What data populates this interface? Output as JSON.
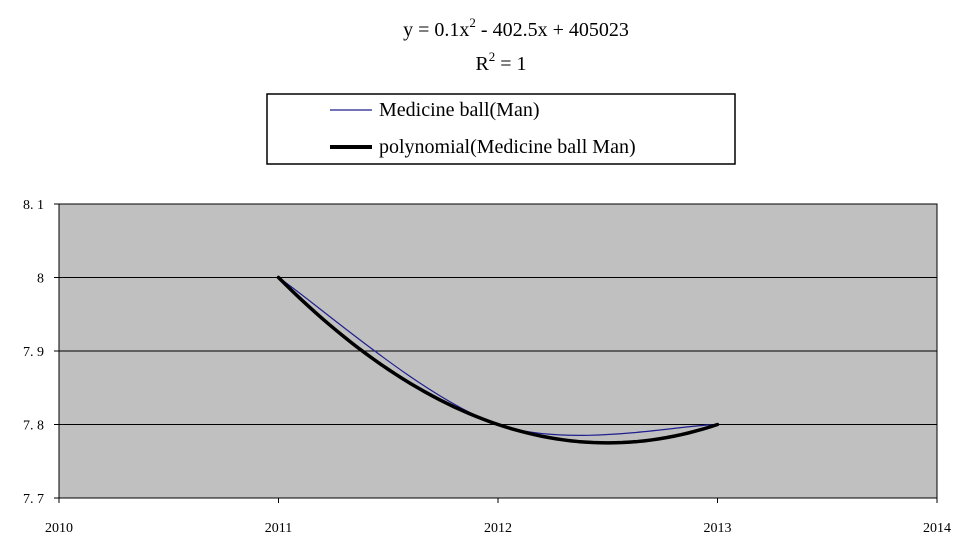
{
  "chart_data": {
    "type": "line",
    "equation": {
      "line1_pre": "y = 0.1x",
      "line1_sup": "2",
      "line1_post": " - 402.5x + 405023",
      "line2_pre": "R",
      "line2_sup": "2",
      "line2_post": " = 1"
    },
    "legend": {
      "placement": "top-center",
      "entries": [
        "Medicine ball(Man)",
        "polynomial(Medicine ball Man)"
      ]
    },
    "xlim": [
      2010,
      2014
    ],
    "ylim": [
      7.7,
      8.1
    ],
    "x_ticks": [
      "2010",
      "2011",
      "2012",
      "2013",
      "2014"
    ],
    "y_ticks": [
      "8. 1",
      "8",
      "7. 9",
      "7. 8",
      "7. 7"
    ],
    "y_tick_values": [
      8.1,
      8.0,
      7.9,
      7.8,
      7.7
    ],
    "grid": true,
    "plot_background": "#c0c0c0",
    "series": [
      {
        "name": "Medicine ball(Man)",
        "color": "#1f1f8f",
        "style": "thin",
        "x": [
          2011,
          2012,
          2013
        ],
        "y": [
          8.0,
          7.8,
          7.8
        ]
      },
      {
        "name": "polynomial(Medicine ball Man)",
        "color": "#000000",
        "style": "thick",
        "trend": "polynomial-order-2",
        "x": [
          2011,
          2012,
          2013
        ],
        "y": [
          8.0,
          7.8,
          7.8
        ]
      }
    ]
  }
}
